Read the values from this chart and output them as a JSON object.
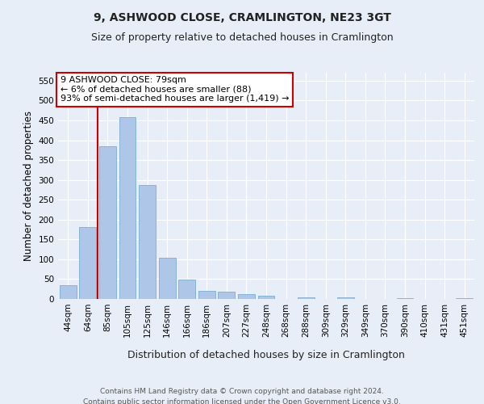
{
  "title": "9, ASHWOOD CLOSE, CRAMLINGTON, NE23 3GT",
  "subtitle": "Size of property relative to detached houses in Cramlington",
  "xlabel": "Distribution of detached houses by size in Cramlington",
  "ylabel": "Number of detached properties",
  "categories": [
    "44sqm",
    "64sqm",
    "85sqm",
    "105sqm",
    "125sqm",
    "146sqm",
    "166sqm",
    "186sqm",
    "207sqm",
    "227sqm",
    "248sqm",
    "268sqm",
    "288sqm",
    "309sqm",
    "329sqm",
    "349sqm",
    "370sqm",
    "390sqm",
    "410sqm",
    "431sqm",
    "451sqm"
  ],
  "values": [
    35,
    182,
    385,
    458,
    288,
    103,
    48,
    20,
    18,
    13,
    9,
    0,
    5,
    0,
    5,
    0,
    0,
    3,
    0,
    0,
    3
  ],
  "bar_color": "#aec6e8",
  "bar_edge_color": "#7aadd4",
  "vline_color": "#cc0000",
  "annotation_text": "9 ASHWOOD CLOSE: 79sqm\n← 6% of detached houses are smaller (88)\n93% of semi-detached houses are larger (1,419) →",
  "annotation_box_color": "#ffffff",
  "annotation_box_edge": "#cc0000",
  "ylim": [
    0,
    570
  ],
  "yticks": [
    0,
    50,
    100,
    150,
    200,
    250,
    300,
    350,
    400,
    450,
    500,
    550
  ],
  "footer_line1": "Contains HM Land Registry data © Crown copyright and database right 2024.",
  "footer_line2": "Contains public sector information licensed under the Open Government Licence v3.0.",
  "background_color": "#e8eef8",
  "grid_color": "#ffffff",
  "title_fontsize": 10,
  "subtitle_fontsize": 9,
  "axis_label_fontsize": 8.5,
  "tick_fontsize": 7.5,
  "annotation_fontsize": 8,
  "footer_fontsize": 6.5
}
